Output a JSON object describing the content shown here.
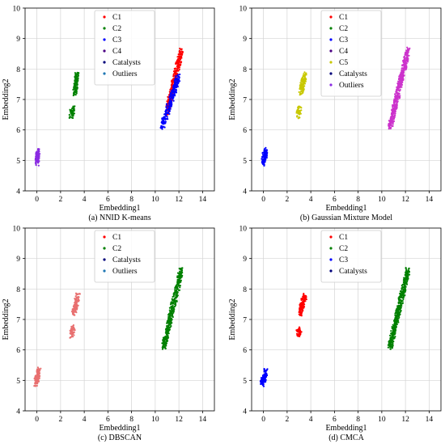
{
  "figure": {
    "background": "#ffffff"
  },
  "chart_data": [
    {
      "type": "scatter",
      "caption": "(a) NNID K-means",
      "xlabel": "Embedding1",
      "ylabel": "Embedding2",
      "xlim": [
        -1,
        15
      ],
      "ylim": [
        4,
        10
      ],
      "xticks": [
        0,
        2,
        4,
        6,
        8,
        10,
        12,
        14
      ],
      "yticks": [
        4,
        5,
        6,
        7,
        8,
        9,
        10
      ],
      "grid": true,
      "legend": "top-center",
      "legend_entries": [
        {
          "name": "C1",
          "color": "#ff0000"
        },
        {
          "name": "C2",
          "color": "#008000"
        },
        {
          "name": "C3",
          "color": "#0000ff"
        },
        {
          "name": "C4",
          "color": "#4b0082"
        },
        {
          "name": "Catalysts",
          "color": "#00007a"
        },
        {
          "name": "Outliers",
          "color": "#1f77b4"
        }
      ],
      "clusters": [
        {
          "color": "#8a2be2",
          "x": [
            0.0,
            0.1
          ],
          "y": [
            4.9,
            5.3
          ],
          "n": 110
        },
        {
          "color": "#008000",
          "x": [
            3.2,
            3.4
          ],
          "y": [
            7.2,
            7.8
          ],
          "n": 110
        },
        {
          "color": "#008000",
          "x": [
            2.9,
            3.1
          ],
          "y": [
            6.5,
            6.7
          ],
          "n": 50
        },
        {
          "color": "#ff0000",
          "x": [
            11.0,
            12.2
          ],
          "y": [
            6.6,
            8.6
          ],
          "n": 280
        },
        {
          "color": "#0000ff",
          "x": [
            10.6,
            12.0
          ],
          "y": [
            6.1,
            7.8
          ],
          "n": 220
        }
      ]
    },
    {
      "type": "scatter",
      "caption": "(b) Gaussian Mixture Model",
      "xlabel": "Embedding1",
      "ylabel": "Embedding2",
      "xlim": [
        -1,
        15
      ],
      "ylim": [
        4,
        10
      ],
      "xticks": [
        0,
        2,
        4,
        6,
        8,
        10,
        12,
        14
      ],
      "yticks": [
        4,
        5,
        6,
        7,
        8,
        9,
        10
      ],
      "grid": true,
      "legend": "top-center",
      "legend_entries": [
        {
          "name": "C1",
          "color": "#ff0000"
        },
        {
          "name": "C2",
          "color": "#008000"
        },
        {
          "name": "C3",
          "color": "#0000ff"
        },
        {
          "name": "C4",
          "color": "#4b0082"
        },
        {
          "name": "C5",
          "color": "#c8c800"
        },
        {
          "name": "Catalysts",
          "color": "#00007a"
        },
        {
          "name": "Outliers",
          "color": "#8a2be2"
        }
      ],
      "clusters": [
        {
          "color": "#0000ff",
          "x": [
            -0.1,
            0.2
          ],
          "y": [
            4.9,
            5.3
          ],
          "n": 110
        },
        {
          "color": "#c8c800",
          "x": [
            3.1,
            3.5
          ],
          "y": [
            7.2,
            7.8
          ],
          "n": 110
        },
        {
          "color": "#c8c800",
          "x": [
            2.9,
            3.1
          ],
          "y": [
            6.5,
            6.7
          ],
          "n": 45
        },
        {
          "color": "#cc33cc",
          "x": [
            10.7,
            12.2
          ],
          "y": [
            6.1,
            8.6
          ],
          "n": 450
        }
      ]
    },
    {
      "type": "scatter",
      "caption": "(c) DBSCAN",
      "xlabel": "Embedding1",
      "ylabel": "Embedding2",
      "xlim": [
        -1,
        15
      ],
      "ylim": [
        4,
        10
      ],
      "xticks": [
        0,
        2,
        4,
        6,
        8,
        10,
        12,
        14
      ],
      "yticks": [
        4,
        5,
        6,
        7,
        8,
        9,
        10
      ],
      "grid": true,
      "legend": "top-center",
      "legend_entries": [
        {
          "name": "C1",
          "color": "#ff0000"
        },
        {
          "name": "C2",
          "color": "#008000"
        },
        {
          "name": "Catalysts",
          "color": "#00007a"
        },
        {
          "name": "Outliers",
          "color": "#1f77b4"
        }
      ],
      "clusters": [
        {
          "color": "#e87070",
          "x": [
            -0.1,
            0.2
          ],
          "y": [
            4.9,
            5.3
          ],
          "n": 110
        },
        {
          "color": "#e87070",
          "x": [
            3.1,
            3.5
          ],
          "y": [
            7.2,
            7.8
          ],
          "n": 110
        },
        {
          "color": "#e87070",
          "x": [
            2.9,
            3.1
          ],
          "y": [
            6.5,
            6.7
          ],
          "n": 45
        },
        {
          "color": "#008000",
          "x": [
            10.7,
            12.2
          ],
          "y": [
            6.1,
            8.6
          ],
          "n": 460
        }
      ]
    },
    {
      "type": "scatter",
      "caption": "(d) CMCA",
      "xlabel": "Embedding1",
      "ylabel": "Embedding2",
      "xlim": [
        -1,
        15
      ],
      "ylim": [
        4,
        10
      ],
      "xticks": [
        0,
        2,
        4,
        6,
        8,
        10,
        12,
        14
      ],
      "yticks": [
        4,
        5,
        6,
        7,
        8,
        9,
        10
      ],
      "grid": true,
      "legend": "top-center",
      "legend_entries": [
        {
          "name": "C1",
          "color": "#ff0000"
        },
        {
          "name": "C2",
          "color": "#008000"
        },
        {
          "name": "C3",
          "color": "#0000ff"
        },
        {
          "name": "Catalysts",
          "color": "#00007a"
        }
      ],
      "clusters": [
        {
          "color": "#0000ff",
          "x": [
            -0.1,
            0.2
          ],
          "y": [
            4.9,
            5.3
          ],
          "n": 110
        },
        {
          "color": "#ff0000",
          "x": [
            3.1,
            3.5
          ],
          "y": [
            7.2,
            7.8
          ],
          "n": 110
        },
        {
          "color": "#ff0000",
          "x": [
            2.9,
            3.1
          ],
          "y": [
            6.5,
            6.7
          ],
          "n": 45
        },
        {
          "color": "#008000",
          "x": [
            10.7,
            12.2
          ],
          "y": [
            6.1,
            8.6
          ],
          "n": 460
        }
      ]
    }
  ]
}
